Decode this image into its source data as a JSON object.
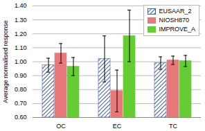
{
  "chart_data": {
    "type": "bar",
    "categories": [
      "OC",
      "EC",
      "TC"
    ],
    "series": [
      {
        "name": "EUSAAR_2",
        "color": "#3f5f9f",
        "values": [
          0.975,
          1.02,
          0.99
        ],
        "errors": [
          0.05,
          0.165,
          0.045
        ]
      },
      {
        "name": "NIOSH870",
        "color": "#e8787a",
        "values": [
          1.06,
          0.79,
          1.01
        ],
        "errors": [
          0.07,
          0.15,
          0.03
        ]
      },
      {
        "name": "IMPROVE_A",
        "color": "#66cc33",
        "values": [
          0.965,
          1.185,
          1.005
        ],
        "errors": [
          0.065,
          0.185,
          0.04
        ]
      }
    ],
    "y_label": "Average normalised response",
    "ylim": [
      0.6,
      1.4
    ],
    "yticks": [
      {
        "value": 0.6,
        "label": "0.60"
      },
      {
        "value": 0.7,
        "label": "0.70"
      },
      {
        "value": 0.8,
        "label": "0.80"
      },
      {
        "value": 0.9,
        "label": "0.90"
      },
      {
        "value": 1.0,
        "label": "1.00"
      },
      {
        "value": 1.1,
        "label": "1.10"
      },
      {
        "value": 1.2,
        "label": "1.20"
      },
      {
        "value": 1.3,
        "label": "1.30"
      },
      {
        "value": 1.4,
        "label": "1.40"
      }
    ],
    "grid": true,
    "legend": "top-right"
  }
}
